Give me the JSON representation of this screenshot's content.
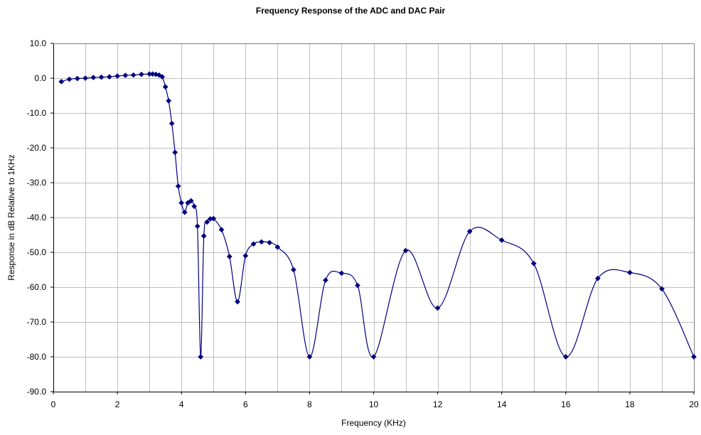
{
  "chart_data": {
    "type": "scatter",
    "title": "Frequency Response of the ADC and DAC Pair",
    "xlabel": "Frequency (KHz)",
    "ylabel": "Response in dB Relative to 1KHz",
    "xlim": [
      0,
      20
    ],
    "ylim": [
      -90,
      10
    ],
    "x_ticks": [
      "0",
      "2",
      "4",
      "6",
      "8",
      "10",
      "12",
      "14",
      "16",
      "18",
      "20"
    ],
    "y_ticks": [
      "10.0",
      "0.0",
      "-10.0",
      "-20.0",
      "-30.0",
      "-40.0",
      "-50.0",
      "-60.0",
      "-70.0",
      "-80.0",
      "-90.0"
    ],
    "grid": true,
    "smooth_line": true,
    "series": [
      {
        "color": "#000080",
        "marker": "diamond",
        "x": [
          0.25,
          0.5,
          0.75,
          1.0,
          1.25,
          1.5,
          1.75,
          2.0,
          2.25,
          2.5,
          2.75,
          3.0,
          3.1,
          3.2,
          3.3,
          3.4,
          3.5,
          3.6,
          3.7,
          3.8,
          3.9,
          4.0,
          4.1,
          4.2,
          4.3,
          4.4,
          4.5,
          4.6,
          4.7,
          4.8,
          4.9,
          5.0,
          5.25,
          5.5,
          5.75,
          6.0,
          6.25,
          6.5,
          6.75,
          7.0,
          7.5,
          8.0,
          8.5,
          9.0,
          9.5,
          10.0,
          11.0,
          12.0,
          13.0,
          14.0,
          15.0,
          16.0,
          17.0,
          18.0,
          19.0,
          20.0
        ],
        "y": [
          -1.0,
          -0.3,
          -0.1,
          0.0,
          0.2,
          0.3,
          0.4,
          0.6,
          0.8,
          0.9,
          1.1,
          1.2,
          1.2,
          1.1,
          0.9,
          0.4,
          -2.5,
          -6.5,
          -13.0,
          -21.3,
          -31.0,
          -35.8,
          -38.5,
          -35.8,
          -35.2,
          -36.8,
          -42.5,
          -80.0,
          -45.3,
          -41.3,
          -40.4,
          -40.3,
          -43.5,
          -51.2,
          -64.2,
          -51.0,
          -47.6,
          -47.0,
          -47.2,
          -48.5,
          -55.0,
          -80.0,
          -58.0,
          -56.0,
          -59.5,
          -80.0,
          -49.5,
          -66.0,
          -44.0,
          -46.5,
          -53.2,
          -80.0,
          -57.5,
          -55.8,
          -60.5,
          -80.0
        ]
      }
    ]
  }
}
